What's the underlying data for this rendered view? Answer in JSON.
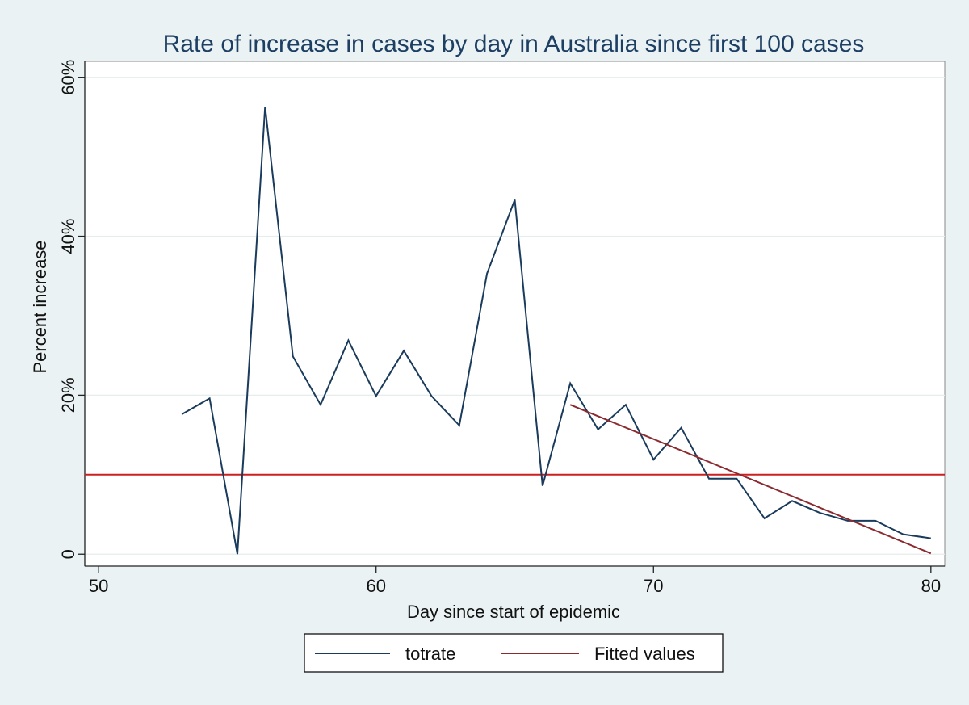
{
  "chart_data": {
    "type": "line",
    "title": "Rate of increase in cases by day in Australia since first 100 cases",
    "xlabel": "Day since start of epidemic",
    "ylabel": "Percent increase",
    "xlim": [
      49.5,
      80.5
    ],
    "ylim": [
      -1.5,
      62
    ],
    "x_ticks": [
      {
        "value": 50,
        "label": "50"
      },
      {
        "value": 60,
        "label": "60"
      },
      {
        "value": 70,
        "label": "70"
      },
      {
        "value": 80,
        "label": "80"
      }
    ],
    "y_ticks": [
      {
        "value": 0,
        "label": "0"
      },
      {
        "value": 20,
        "label": "20%"
      },
      {
        "value": 40,
        "label": "40%"
      },
      {
        "value": 60,
        "label": "60%"
      }
    ],
    "grid": true,
    "legend": {
      "position": "bottom"
    },
    "series": [
      {
        "name": "totrate",
        "color": "#1a3b5c",
        "x": [
          53,
          54,
          55,
          56,
          57,
          58,
          59,
          60,
          61,
          62,
          63,
          64,
          65,
          66,
          67,
          68,
          69,
          70,
          71,
          72,
          73,
          74,
          75,
          76,
          77,
          78,
          79,
          80
        ],
        "y": [
          17.6,
          19.6,
          0,
          56.3,
          24.9,
          18.8,
          26.9,
          19.9,
          25.6,
          19.9,
          16.2,
          35.3,
          44.6,
          8.6,
          21.5,
          15.7,
          18.8,
          11.9,
          15.9,
          9.5,
          9.5,
          4.5,
          6.7,
          5.2,
          4.2,
          4.2,
          2.5,
          2.0
        ]
      },
      {
        "name": "Fitted values",
        "color": "#8b2a2f",
        "x": [
          67,
          80
        ],
        "y": [
          18.8,
          0.1
        ]
      }
    ],
    "reference_lines": [
      {
        "axis": "y",
        "value": 10,
        "color": "#cc1f1f"
      }
    ]
  }
}
